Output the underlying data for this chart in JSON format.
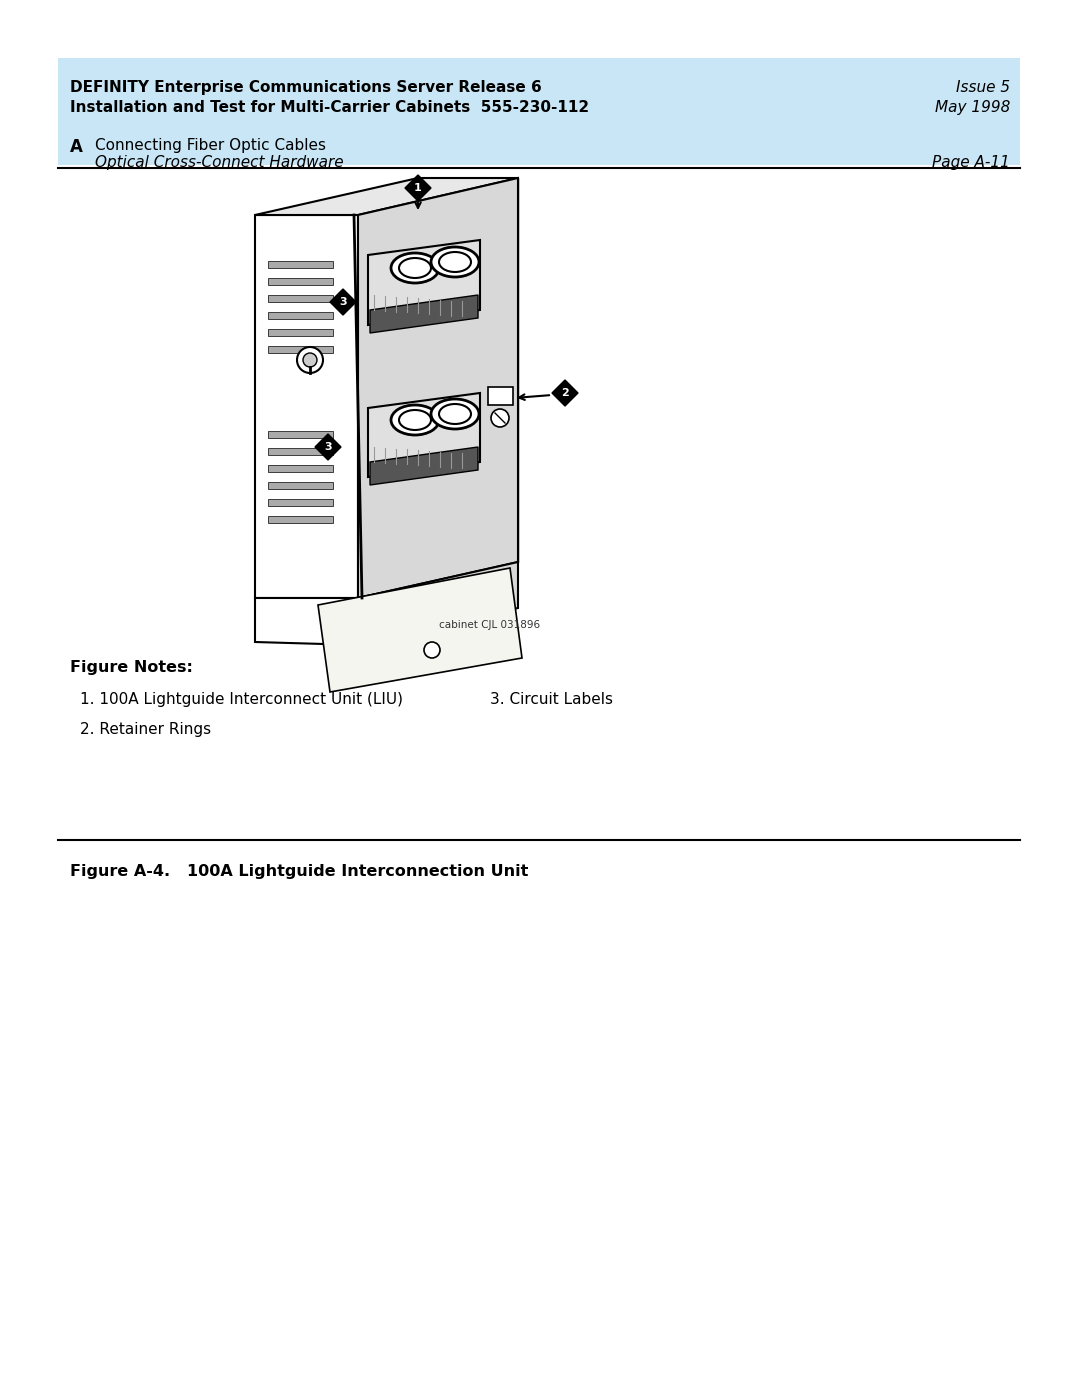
{
  "header_bg_color": "#c8e6f5",
  "header_line1_bold": "DEFINITY Enterprise Communications Server Release 6",
  "header_line2_bold": "Installation and Test for Multi-Carrier Cabinets  555-230-112",
  "header_right1": "Issue 5",
  "header_right2": "May 1998",
  "subheader_letter": "A",
  "subheader_text": "Connecting Fiber Optic Cables",
  "subheader_italic": "Optical Cross-Connect Hardware",
  "subheader_page": "Page A-11",
  "cabinet_label": "cabinet CJL 031896",
  "figure_notes_title": "Figure Notes:",
  "note1": "1. 100A Lightguide Interconnect Unit (LIU)",
  "note2": "2. Retainer Rings",
  "note3": "3. Circuit Labels",
  "figure_caption": "Figure A-4.   100A Lightguide Interconnection Unit",
  "bg_color": "#ffffff",
  "text_color": "#000000"
}
